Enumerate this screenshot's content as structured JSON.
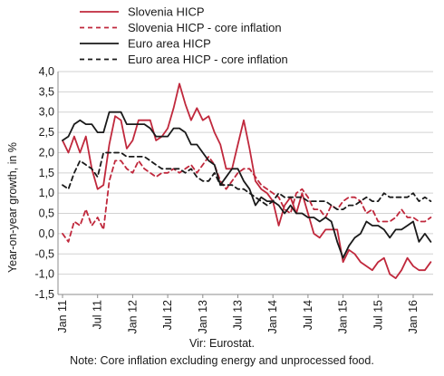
{
  "chart_data": {
    "type": "line",
    "title": "",
    "xlabel": "",
    "ylabel": "Year-on-year growth, in %",
    "ylim": [
      -1.5,
      4.0
    ],
    "y_ticks": [
      "4,0",
      "3,5",
      "3,0",
      "2,5",
      "2,0",
      "1,5",
      "1,0",
      "0,5",
      "0,0",
      "-0,5",
      "-1,0",
      "-1,5"
    ],
    "y_tick_values": [
      4.0,
      3.5,
      3.0,
      2.5,
      2.0,
      1.5,
      1.0,
      0.5,
      0.0,
      -0.5,
      -1.0,
      -1.5
    ],
    "x_ticks": [
      "Jan 11",
      "Jul 11",
      "Jan 12",
      "Jul 12",
      "Jan 13",
      "Jul 13",
      "Jan 14",
      "Jul 14",
      "Jan 15",
      "Jul 15",
      "Jan 16"
    ],
    "x_tick_months": [
      0,
      6,
      12,
      18,
      24,
      30,
      36,
      42,
      48,
      54,
      60
    ],
    "x_months": [
      0,
      1,
      2,
      3,
      4,
      5,
      6,
      7,
      8,
      9,
      10,
      11,
      12,
      13,
      14,
      15,
      16,
      17,
      18,
      19,
      20,
      21,
      22,
      23,
      24,
      25,
      26,
      27,
      28,
      29,
      30,
      31,
      32,
      33,
      34,
      35,
      36,
      37,
      38,
      39,
      40,
      41,
      42,
      43,
      44,
      45,
      46,
      47,
      48,
      49,
      50,
      51,
      52,
      53,
      54,
      55,
      56,
      57,
      58,
      59,
      60,
      61,
      62,
      63
    ],
    "grid": true,
    "legend_position": "top",
    "series": [
      {
        "name": "Slovenia HICP",
        "color": "#c0283c",
        "dash": "solid",
        "values": [
          2.3,
          2.0,
          2.4,
          2.0,
          2.4,
          1.6,
          1.1,
          1.2,
          2.2,
          2.9,
          2.8,
          2.1,
          2.3,
          2.8,
          2.8,
          2.8,
          2.3,
          2.4,
          2.6,
          3.1,
          3.7,
          3.2,
          2.8,
          3.1,
          2.8,
          2.9,
          2.5,
          2.2,
          1.6,
          1.6,
          2.2,
          2.8,
          2.1,
          1.3,
          1.1,
          1.0,
          0.8,
          0.2,
          0.7,
          0.9,
          0.5,
          1.0,
          0.5,
          0.0,
          -0.1,
          0.1,
          0.1,
          0.1,
          -0.7,
          -0.4,
          -0.5,
          -0.7,
          -0.8,
          -0.9,
          -0.7,
          -0.6,
          -1.0,
          -1.1,
          -0.9,
          -0.6,
          -0.8,
          -0.9,
          -0.9,
          -0.7
        ]
      },
      {
        "name": "Slovenia HICP - core inflation",
        "color": "#c0283c",
        "dash": "dashed",
        "values": [
          0.0,
          -0.2,
          0.3,
          0.2,
          0.6,
          0.2,
          0.4,
          0.1,
          1.3,
          1.8,
          1.8,
          1.6,
          1.5,
          1.8,
          1.6,
          1.5,
          1.4,
          1.5,
          1.5,
          1.6,
          1.5,
          1.6,
          1.7,
          1.5,
          1.7,
          1.9,
          1.7,
          1.3,
          1.1,
          1.3,
          1.5,
          1.6,
          1.6,
          1.4,
          1.2,
          1.1,
          1.0,
          0.9,
          0.6,
          0.5,
          1.0,
          1.1,
          0.9,
          0.6,
          0.6,
          0.4,
          0.7,
          0.6,
          0.8,
          0.9,
          0.9,
          0.8,
          0.5,
          0.6,
          0.3,
          0.3,
          0.3,
          0.4,
          0.6,
          0.4,
          0.4,
          0.3,
          0.3,
          0.4
        ]
      },
      {
        "name": "Euro area HICP",
        "color": "#1a1a1a",
        "dash": "solid",
        "values": [
          2.3,
          2.4,
          2.7,
          2.8,
          2.7,
          2.7,
          2.5,
          2.5,
          3.0,
          3.0,
          3.0,
          2.7,
          2.7,
          2.7,
          2.7,
          2.6,
          2.4,
          2.4,
          2.4,
          2.6,
          2.6,
          2.5,
          2.2,
          2.2,
          2.0,
          1.8,
          1.7,
          1.2,
          1.4,
          1.6,
          1.6,
          1.3,
          1.1,
          0.7,
          0.9,
          0.8,
          0.8,
          0.7,
          0.5,
          0.7,
          0.5,
          0.5,
          0.4,
          0.4,
          0.3,
          0.4,
          0.3,
          -0.2,
          -0.6,
          -0.3,
          -0.1,
          0.0,
          0.3,
          0.2,
          0.2,
          0.1,
          -0.1,
          0.1,
          0.1,
          0.2,
          0.3,
          -0.2,
          0.0,
          -0.2
        ]
      },
      {
        "name": "Euro area HICP - core inflation",
        "color": "#1a1a1a",
        "dash": "dashed",
        "values": [
          1.2,
          1.1,
          1.5,
          1.8,
          1.7,
          1.6,
          1.4,
          2.0,
          2.0,
          2.0,
          2.0,
          1.9,
          1.9,
          1.9,
          1.9,
          1.8,
          1.7,
          1.6,
          1.6,
          1.6,
          1.6,
          1.5,
          1.6,
          1.4,
          1.3,
          1.3,
          1.5,
          1.2,
          1.2,
          1.2,
          1.1,
          1.1,
          1.0,
          0.9,
          0.8,
          0.7,
          0.8,
          1.0,
          0.9,
          0.9,
          0.9,
          0.9,
          0.8,
          0.8,
          0.8,
          0.8,
          0.7,
          0.6,
          0.6,
          0.7,
          0.7,
          0.8,
          0.9,
          0.8,
          0.8,
          1.0,
          0.9,
          0.9,
          0.9,
          0.9,
          1.0,
          0.8,
          0.9,
          0.8
        ]
      }
    ]
  },
  "footer": {
    "source": "Vir: Eurostat.",
    "note": "Note: Core inflation excluding energy and unprocessed food."
  }
}
